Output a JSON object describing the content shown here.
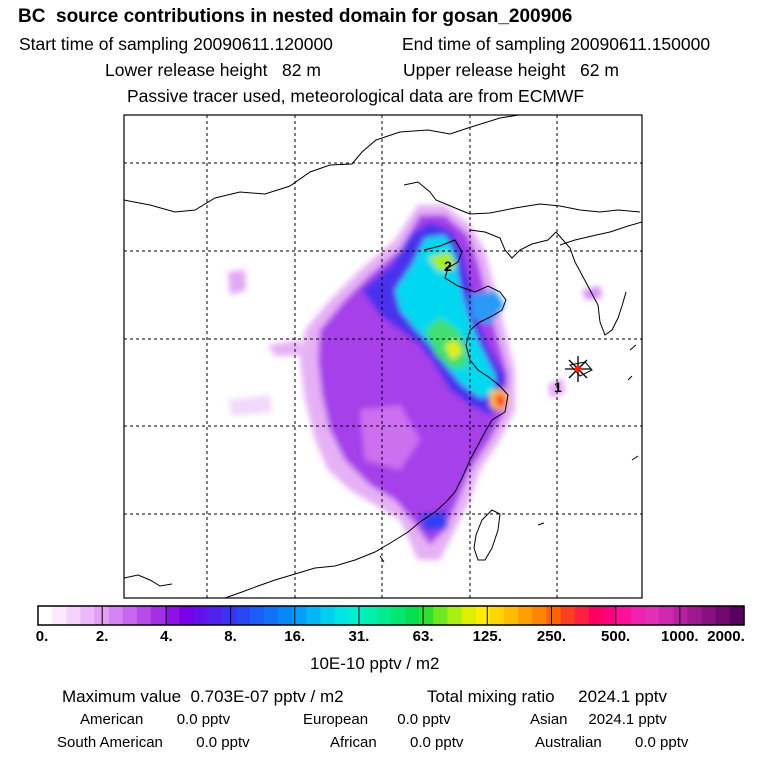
{
  "header": {
    "title": "BC  source contributions in nested domain for gosan_200906",
    "start_label": "Start time of sampling 20090611.120000",
    "end_label": "End time of sampling 20090611.150000",
    "lower_label": "Lower release height   82 m",
    "upper_label": "Upper release height   62 m",
    "note": "Passive tracer used, meteorological data are from ECMWF"
  },
  "map": {
    "receptor_marker": "star-icon",
    "point_labels": [
      "1",
      "2"
    ]
  },
  "colorbar": {
    "unit": "10E-10 pptv / m2",
    "tick_labels": [
      "0.",
      "2.",
      "4.",
      "8.",
      "16.",
      "31.",
      "63.",
      "125.",
      "250.",
      "500.",
      "1000.",
      "2000."
    ],
    "colors": [
      "#ffffff",
      "#fbeafe",
      "#f4d2fb",
      "#ecb9f8",
      "#e2a0f5",
      "#d583f2",
      "#c766ee",
      "#b84aea",
      "#a62ee6",
      "#9010e6",
      "#7a00e8",
      "#6510ec",
      "#4f22ef",
      "#3a34f2",
      "#2a46f5",
      "#1d5cf7",
      "#1072f8",
      "#0689f8",
      "#00a0f8",
      "#00b8f4",
      "#00d0ee",
      "#00e6e6",
      "#00f0d0",
      "#00f0b0",
      "#00ec90",
      "#00e870",
      "#00e050",
      "#30e030",
      "#70e820",
      "#a8ee10",
      "#dcf000",
      "#ffec00",
      "#ffd400",
      "#ffbc00",
      "#ffa000",
      "#ff8400",
      "#ff6400",
      "#ff4020",
      "#ff2040",
      "#ff0060",
      "#ff0080",
      "#ff1098",
      "#f020b0",
      "#e030b8",
      "#d028b0",
      "#b820a0",
      "#a01890",
      "#881080",
      "#700870",
      "#580060"
    ]
  },
  "summary": {
    "max_line": "Maximum value  0.703E-07 pptv / m2",
    "total_line": "Total mixing ratio     2024.1 pptv",
    "american": "American        0.0 pptv",
    "european": "European       0.0 pptv",
    "asian": "Asian     2024.1 pptv",
    "south_american": "South American        0.0 pptv",
    "african": "African        0.0 pptv",
    "australian": "Australian        0.0 pptv"
  }
}
